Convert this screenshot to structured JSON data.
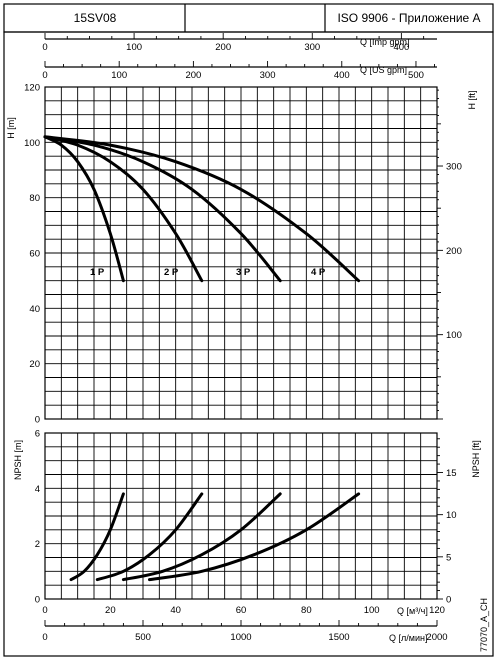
{
  "header": {
    "model": "15SV08",
    "standard": "ISO 9906 - Приложение A"
  },
  "footer_code": "77070_A_CH",
  "chart_data": [
    {
      "type": "line",
      "title": "",
      "ylabel": "H [m]",
      "ylabel_right": "H [ft]",
      "xlabel_top_1": "Q [Imp gpm]",
      "xlabel_top_2": "Q [US gpm]",
      "xlim": [
        0,
        120
      ],
      "ylim": [
        0,
        120
      ],
      "yticks": [
        "0",
        "20",
        "40",
        "60",
        "80",
        "100",
        "120"
      ],
      "yticks_right": [
        "100",
        "200",
        "300"
      ],
      "xticks_top_1": [
        "0",
        "100",
        "200",
        "300",
        "400"
      ],
      "xticks_top_2": [
        "0",
        "100",
        "200",
        "300",
        "400",
        "500"
      ],
      "grid": true,
      "series": [
        {
          "name": "1 P",
          "x": [
            0,
            5,
            10,
            15,
            20,
            24
          ],
          "y": [
            102,
            99,
            93,
            83,
            67,
            50
          ]
        },
        {
          "name": "2 P",
          "x": [
            0,
            10,
            20,
            30,
            40,
            48
          ],
          "y": [
            102,
            99,
            93,
            83,
            67,
            50
          ]
        },
        {
          "name": "3 P",
          "x": [
            0,
            15,
            30,
            45,
            60,
            72
          ],
          "y": [
            102,
            99,
            93,
            83,
            67,
            50
          ]
        },
        {
          "name": "4 P",
          "x": [
            0,
            20,
            40,
            60,
            80,
            96
          ],
          "y": [
            102,
            99,
            93,
            83,
            67,
            50
          ]
        }
      ]
    },
    {
      "type": "line",
      "title": "",
      "ylabel": "NPSH [m]",
      "ylabel_right": "NPSH [ft]",
      "xlabel": "Q [м³/ч]",
      "xlabel_2": "Q [л/мин]",
      "xlim": [
        0,
        120
      ],
      "ylim": [
        0,
        6
      ],
      "yticks": [
        "0",
        "2",
        "4",
        "6"
      ],
      "yticks_right": [
        "0",
        "5",
        "10",
        "15"
      ],
      "xticks": [
        "0",
        "20",
        "40",
        "60",
        "80",
        "100",
        "120"
      ],
      "xticks_2": [
        "0",
        "500",
        "1000",
        "1500",
        "2000"
      ],
      "grid": true,
      "series": [
        {
          "x": [
            8,
            12,
            16,
            20,
            24
          ],
          "y": [
            0.7,
            1.0,
            1.6,
            2.5,
            3.8
          ]
        },
        {
          "x": [
            16,
            24,
            32,
            40,
            48
          ],
          "y": [
            0.7,
            1.0,
            1.6,
            2.5,
            3.8
          ]
        },
        {
          "x": [
            24,
            36,
            48,
            60,
            72
          ],
          "y": [
            0.7,
            1.0,
            1.6,
            2.5,
            3.8
          ]
        },
        {
          "x": [
            32,
            48,
            64,
            80,
            96
          ],
          "y": [
            0.7,
            1.0,
            1.6,
            2.5,
            3.8
          ]
        }
      ]
    }
  ]
}
